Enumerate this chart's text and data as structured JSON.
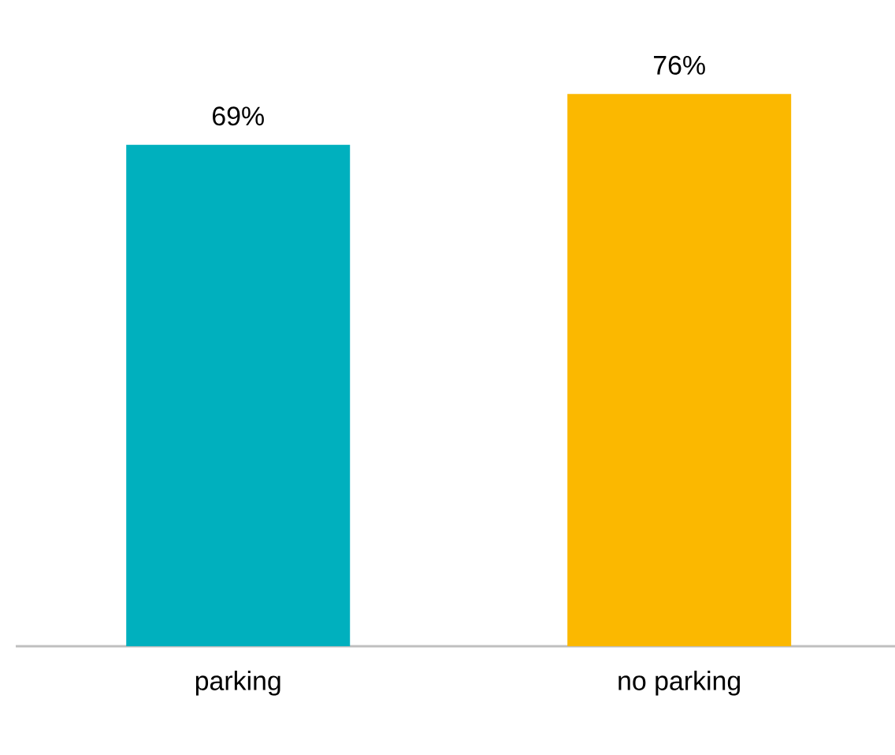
{
  "chart_data": {
    "type": "bar",
    "categories": [
      "parking",
      "no parking"
    ],
    "values": [
      69,
      76
    ],
    "colors": [
      "#00b0be",
      "#fbb800"
    ],
    "value_labels": [
      "69%",
      "76%"
    ]
  }
}
